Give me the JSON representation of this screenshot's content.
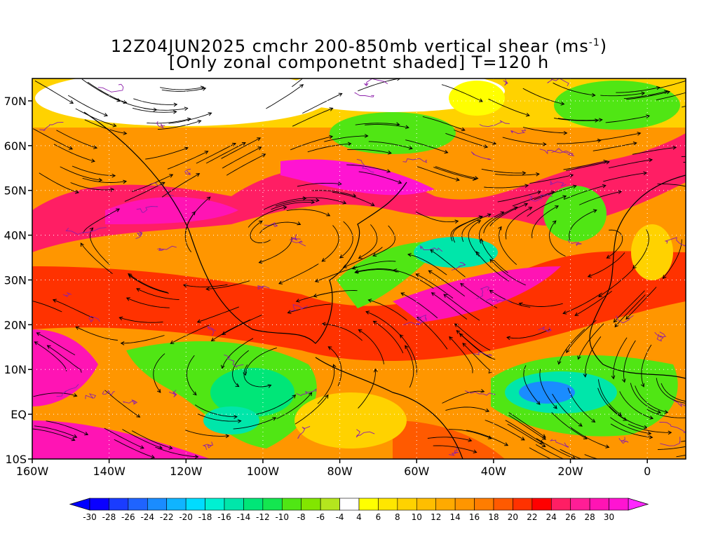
{
  "title": {
    "line1_main": "12Z04JUN2025 cmchr 200-850mb vertical shear (ms",
    "line1_sup": "-1",
    "line1_end": ")",
    "line2": "[Only zonal componetnt shaded] T=120 h"
  },
  "axes": {
    "lat_labels": [
      "70N",
      "60N",
      "50N",
      "40N",
      "30N",
      "20N",
      "10N",
      "EQ",
      "10S"
    ],
    "lat_values": [
      70,
      60,
      50,
      40,
      30,
      20,
      10,
      0,
      -10
    ],
    "lon_labels": [
      "160W",
      "140W",
      "120W",
      "100W",
      "80W",
      "60W",
      "40W",
      "20W",
      "0"
    ],
    "lon_values": [
      -160,
      -140,
      -120,
      -100,
      -80,
      -60,
      -40,
      -20,
      0
    ],
    "lon_range": [
      -160,
      10
    ],
    "lat_range": [
      -10,
      75
    ]
  },
  "colorbar": {
    "labels": [
      "-30",
      "-28",
      "-26",
      "-24",
      "-22",
      "-20",
      "-18",
      "-16",
      "-14",
      "-12",
      "-10",
      "-8",
      "-6",
      "-4",
      "4",
      "6",
      "8",
      "10",
      "12",
      "14",
      "16",
      "18",
      "20",
      "22",
      "24",
      "26",
      "28",
      "30"
    ],
    "colors": [
      "#0a00ff",
      "#1a3cff",
      "#1f64ff",
      "#1a8cff",
      "#10b4ff",
      "#00dcff",
      "#00f0d2",
      "#00e6aa",
      "#00e678",
      "#14e650",
      "#50e614",
      "#82e600",
      "#b4e61e",
      "#ffffff",
      "#ffff00",
      "#ffe600",
      "#ffd200",
      "#ffbe00",
      "#ffaa00",
      "#ff9600",
      "#ff7d00",
      "#ff5a00",
      "#ff3200",
      "#ff0000",
      "#ff1e64",
      "#ff1e96",
      "#ff14b4",
      "#ff14d2"
    ],
    "end_left": "#0000ff",
    "end_right": "#ff28ff"
  },
  "colors": {
    "streamline": "#000000",
    "contour": "#8c1eaa",
    "grid": "#ffffff"
  }
}
